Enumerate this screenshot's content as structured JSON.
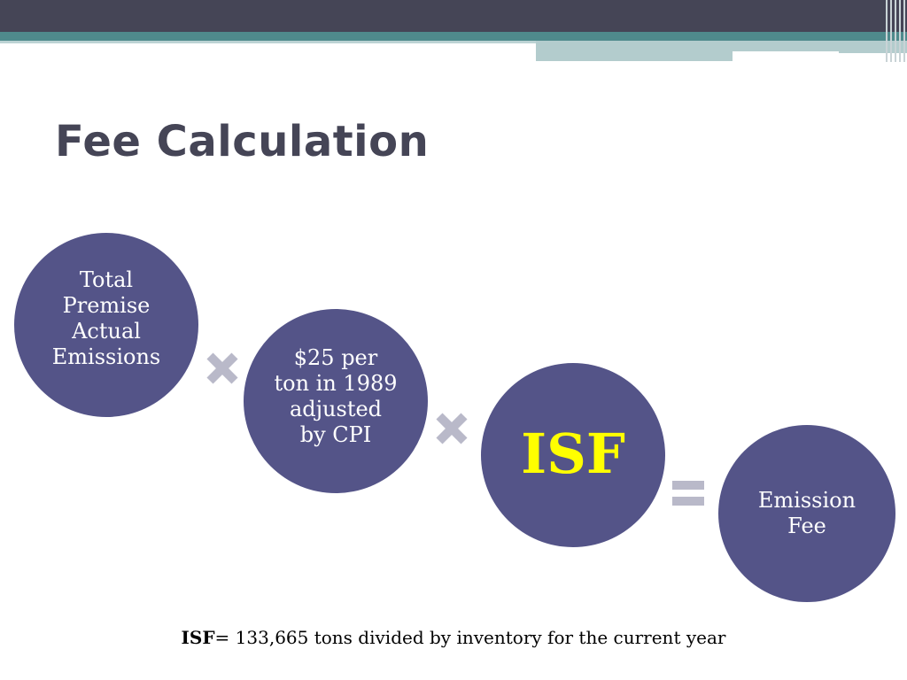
{
  "title": "Fee Calculation",
  "nodes": {
    "emissions": "Total\nPremise\nActual\nEmissions",
    "rate": "$25 per\nton in 1989\nadjusted\nby CPI",
    "isf": "ISF",
    "fee": "Emission\nFee"
  },
  "operators": [
    "times",
    "times",
    "equals"
  ],
  "footnote": {
    "term": "ISF",
    "definition": "= 133,665 tons divided by inventory for the current year"
  },
  "colors": {
    "circle_fill": "#545488",
    "circle_text": "#ffffff",
    "isf_text": "#ffff00",
    "operator": "#b9b9c9",
    "title": "#454556",
    "header_band": "#454556",
    "accent_band": "#4f8a8c"
  }
}
